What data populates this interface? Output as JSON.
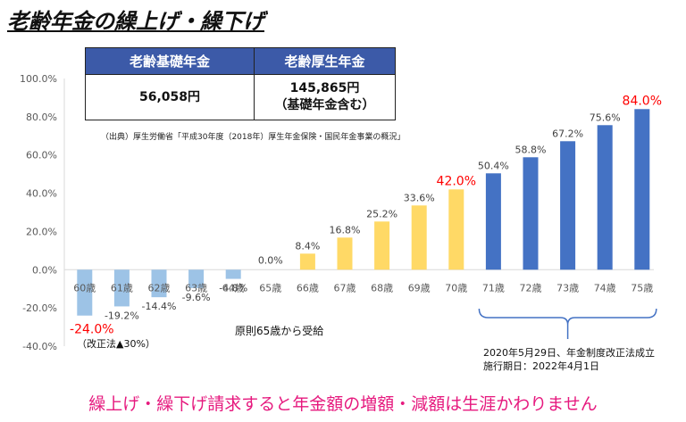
{
  "title": "老齢年金の繰上げ・繰下げ",
  "table": {
    "headers": [
      "老齢基礎年金",
      "老齢厚生年金"
    ],
    "basic_value": "56,058円",
    "welfare_value": "145,865円",
    "welfare_note": "（基礎年金含む）"
  },
  "source_note": "（出典）厚生労働省「平成30年度（2018年）厚生年金保険・国民年金事業の概況」",
  "left_note": "（改正法▲30%）",
  "center_note": "原則65歳から受給",
  "right_note": {
    "line1": "2020年5月29日、年金制度改正法成立",
    "line2": "施行期日：2022年4月1日"
  },
  "bottom_message": "繰上げ・繰下げ請求すると年金額の増額・減額は生涯かわりません",
  "colors": {
    "early": "#9dc3e6",
    "late_standard": "#ffd966",
    "late_extended": "#4472c4",
    "highlight_label": "#ff0000",
    "message": "#e6197e"
  },
  "chart_data": {
    "type": "bar",
    "categories": [
      "60歳",
      "61歳",
      "62歳",
      "63歳",
      "64歳",
      "65歳",
      "66歳",
      "67歳",
      "68歳",
      "69歳",
      "70歳",
      "71歳",
      "72歳",
      "73歳",
      "74歳",
      "75歳"
    ],
    "values": [
      -24.0,
      -19.2,
      -14.4,
      -9.6,
      -4.8,
      0.0,
      8.4,
      16.8,
      25.2,
      33.6,
      42.0,
      50.4,
      58.8,
      67.2,
      75.6,
      84.0
    ],
    "labels": [
      "-24.0%",
      "-19.2%",
      "-14.4%",
      "-9.6%",
      "-4.8%",
      "0.0%",
      "8.4%",
      "16.8%",
      "25.2%",
      "33.6%",
      "42.0%",
      "50.4%",
      "58.8%",
      "67.2%",
      "75.6%",
      "84.0%"
    ],
    "groups": [
      "early",
      "early",
      "early",
      "early",
      "early",
      "none",
      "late_standard",
      "late_standard",
      "late_standard",
      "late_standard",
      "late_standard",
      "late_extended",
      "late_extended",
      "late_extended",
      "late_extended",
      "late_extended"
    ],
    "highlighted": [
      "60歳",
      "70歳",
      "75歳"
    ],
    "yticks": [
      "100.0%",
      "80.0%",
      "60.0%",
      "40.0%",
      "20.0%",
      "0.0%",
      "-20.0%",
      "-40.0%"
    ],
    "ylim": [
      -40,
      100
    ],
    "grid": false,
    "xlabel": "",
    "ylabel": ""
  }
}
